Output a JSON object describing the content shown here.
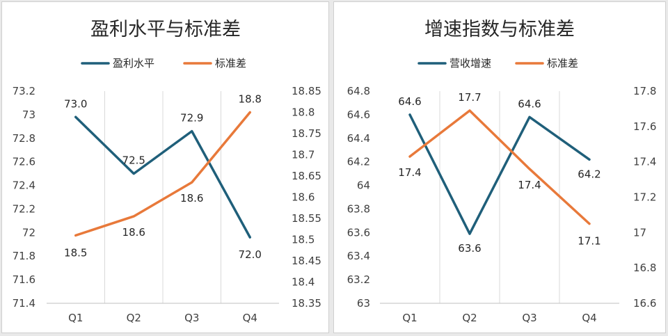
{
  "colors": {
    "primary": "#1f5f7a",
    "secondary": "#e8793a"
  },
  "chart_data": [
    {
      "type": "line",
      "title": "盈利水平与标准差",
      "categories": [
        "Q1",
        "Q2",
        "Q3",
        "Q4"
      ],
      "series": [
        {
          "name": "盈利水平",
          "axis": "left",
          "values": [
            72.98,
            72.5,
            72.86,
            71.96
          ],
          "labels": [
            "73.0",
            "72.5",
            "72.9",
            "72.0"
          ]
        },
        {
          "name": "标准差",
          "axis": "right",
          "values": [
            18.51,
            18.555,
            18.635,
            18.8
          ],
          "labels": [
            "18.5",
            "18.6",
            "18.6",
            "18.8"
          ]
        }
      ],
      "left_axis": {
        "ylim": [
          71.4,
          73.2
        ],
        "ticks": [
          "73.2",
          "73",
          "72.8",
          "72.6",
          "72.4",
          "72.2",
          "72",
          "71.8",
          "71.6",
          "71.4"
        ]
      },
      "right_axis": {
        "ylim": [
          18.35,
          18.85
        ],
        "ticks": [
          "18.85",
          "18.8",
          "18.75",
          "18.7",
          "18.65",
          "18.6",
          "18.55",
          "18.5",
          "18.45",
          "18.4",
          "18.35"
        ]
      },
      "legend": "top",
      "grid": "vertical"
    },
    {
      "type": "line",
      "title": "增速指数与标准差",
      "categories": [
        "Q1",
        "Q2",
        "Q3",
        "Q4"
      ],
      "series": [
        {
          "name": "营收增速",
          "axis": "left",
          "values": [
            64.6,
            63.59,
            64.58,
            64.22
          ],
          "labels": [
            "64.6",
            "63.6",
            "64.6",
            "64.2"
          ]
        },
        {
          "name": "标准差",
          "axis": "right",
          "values": [
            17.43,
            17.69,
            17.36,
            17.05
          ],
          "labels": [
            "17.4",
            "17.7",
            "17.4",
            "17.1"
          ]
        }
      ],
      "left_axis": {
        "ylim": [
          63,
          64.8
        ],
        "ticks": [
          "64.8",
          "64.6",
          "64.4",
          "64.2",
          "64",
          "63.8",
          "63.6",
          "63.4",
          "63.2",
          "63"
        ]
      },
      "right_axis": {
        "ylim": [
          16.6,
          17.8
        ],
        "ticks": [
          "17.8",
          "17.6",
          "17.4",
          "17.2",
          "17",
          "16.8",
          "16.6"
        ]
      },
      "legend": "top",
      "grid": "vertical"
    }
  ]
}
